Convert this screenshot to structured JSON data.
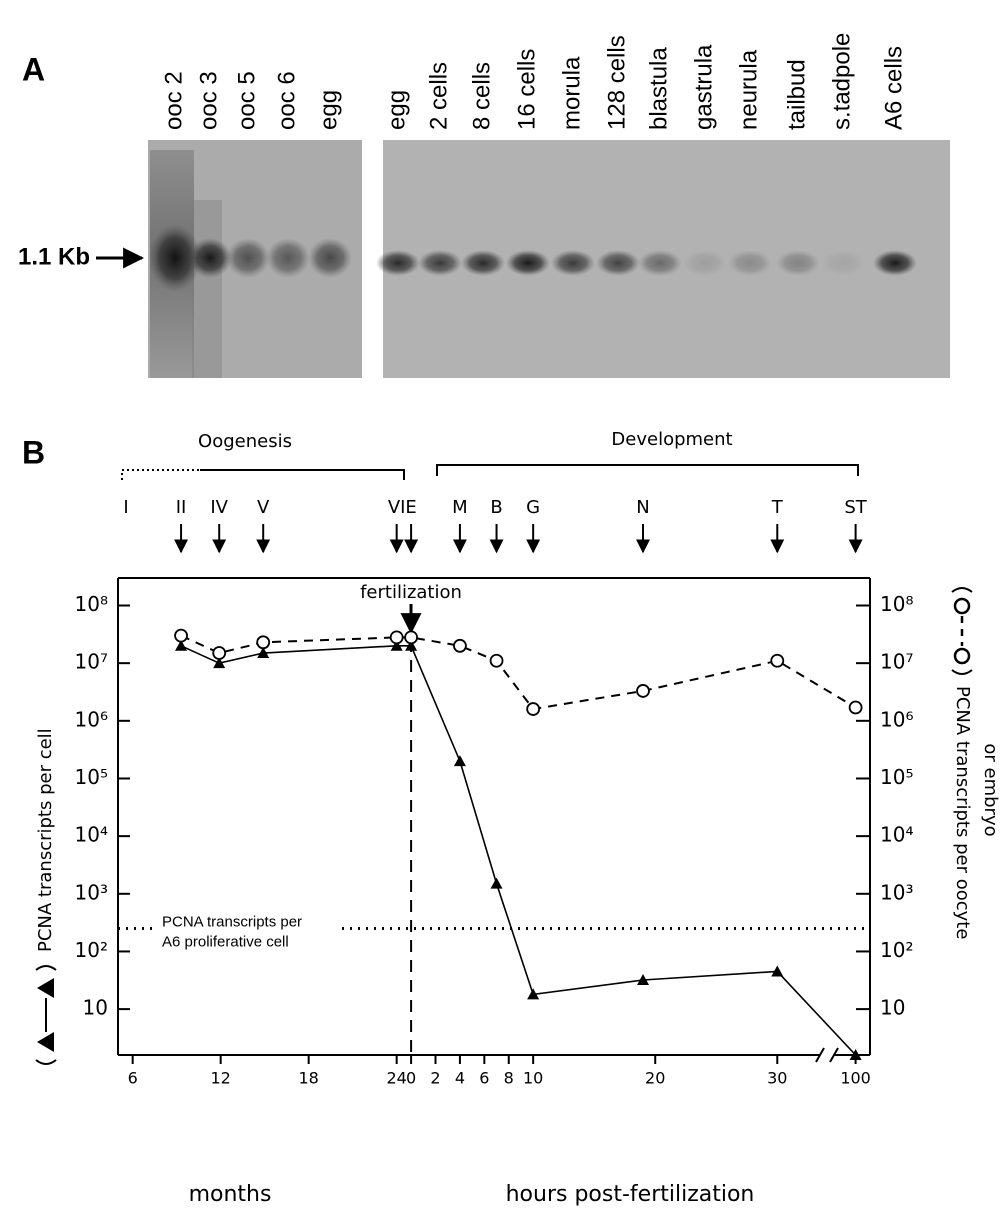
{
  "panel_a": {
    "label": "A",
    "marker": "1.1 Kb",
    "lanes_left": [
      "ooc 2",
      "ooc 3",
      "ooc 5",
      "ooc 6",
      "egg"
    ],
    "lanes_right": [
      "egg",
      "2 cells",
      "8 cells",
      "16 cells",
      "morula",
      "128 cells",
      "blastula",
      "gastrula",
      "neurula",
      "tailbud",
      "s.tadpole",
      "A6 cells"
    ]
  },
  "panel_b_label": "B",
  "chart_data": {
    "type": "line",
    "log_scale": true,
    "oogenesis_label": "Oogenesis",
    "development_label": "Development",
    "oogenesis_start_stage": "I",
    "fertilization_label": "fertilization",
    "categories": [
      "II",
      "IV",
      "V",
      "VI",
      "E",
      "M",
      "B",
      "G",
      "N",
      "T",
      "ST"
    ],
    "x_segments": [
      {
        "label": "months",
        "xlim": [
          5,
          24.5
        ],
        "xticks": [
          6,
          12,
          18,
          24
        ],
        "x": [
          9.3,
          11.9,
          14.9,
          24
        ]
      },
      {
        "label": "hours post-fertilization",
        "xlim": [
          -0.5,
          33.5
        ],
        "xticks": [
          0,
          2,
          4,
          6,
          8,
          10,
          20,
          30
        ],
        "x": [
          0,
          4,
          7,
          10,
          19,
          30
        ]
      },
      {
        "xlim": [
          97,
          102
        ],
        "xticks": [
          100
        ],
        "x": [
          100
        ]
      }
    ],
    "ylabel": "PCNA transcripts per cell",
    "y2label": [
      "PCNA transcripts per oocyte",
      "or embryo"
    ],
    "ylim": [
      1.6,
      300000000
    ],
    "y2lim": [
      1.6,
      300000000
    ],
    "yticks": [
      {
        "value": 100000000,
        "label": "10⁸"
      },
      {
        "value": 10000000,
        "label": "10⁷"
      },
      {
        "value": 1000000,
        "label": "10⁶"
      },
      {
        "value": 100000,
        "label": "10⁵"
      },
      {
        "value": 10000,
        "label": "10⁴"
      },
      {
        "value": 1000,
        "label": "10³"
      },
      {
        "value": 100,
        "label": "10²"
      },
      10
    ],
    "y2ticks": [
      {
        "value": 100000000,
        "label": "10⁸"
      },
      {
        "value": 10000000,
        "label": "10⁷"
      },
      {
        "value": 1000000,
        "label": "10⁶"
      },
      {
        "value": 100000,
        "label": "10⁵"
      },
      {
        "value": 10000,
        "label": "10⁴"
      },
      {
        "value": 1000,
        "label": "10³"
      },
      {
        "value": 100,
        "label": "10²"
      },
      10
    ],
    "series": [
      {
        "color": "#000000",
        "marker": "triangle",
        "line_style": "solid",
        "values": [
          20000000,
          10000000,
          15000000,
          20000000,
          20000000,
          200000,
          1500,
          18,
          32,
          45,
          1.6
        ]
      },
      {
        "color": "#000000",
        "marker": "circle",
        "line_style": "dashed",
        "axis": "y2",
        "values": [
          30000000,
          15000000,
          23000000,
          28000000,
          28000000,
          20000000,
          11000000,
          1600000,
          3300000,
          11000000,
          1700000
        ]
      }
    ],
    "reference_line": {
      "value": 250,
      "label": [
        "PCNA transcripts per",
        "A6 proliferative cell"
      ]
    }
  }
}
